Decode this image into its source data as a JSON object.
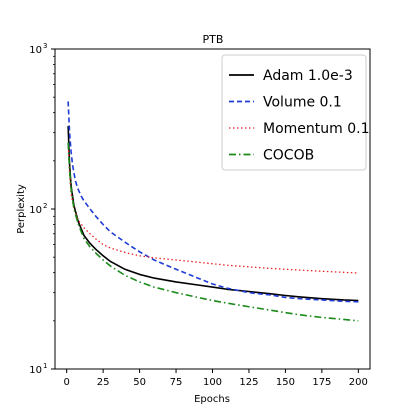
{
  "chart_data": {
    "type": "line",
    "title": "PTB",
    "xlabel": "Epochs",
    "ylabel": "Perplexity",
    "xlim": [
      -8,
      208
    ],
    "ylim": [
      10,
      1000
    ],
    "yscale": "log",
    "x_ticks": [
      0,
      25,
      50,
      75,
      100,
      125,
      150,
      175,
      200
    ],
    "x_tick_labels": [
      "0",
      "25",
      "50",
      "75",
      "100",
      "125",
      "150",
      "175",
      "200"
    ],
    "y_ticks": [
      10,
      100,
      1000
    ],
    "y_tick_labels": [
      {
        "base": "10",
        "exp": "1"
      },
      {
        "base": "10",
        "exp": "2"
      },
      {
        "base": "10",
        "exp": "3"
      }
    ],
    "grid": false,
    "legend_position": "top-right",
    "series": [
      {
        "name": "Adam 1.0e-3",
        "color": "#000000",
        "style": "solid",
        "x": [
          1,
          2,
          3,
          5,
          8,
          12,
          16,
          20,
          25,
          30,
          40,
          50,
          60,
          75,
          90,
          100,
          110,
          125,
          140,
          150,
          160,
          175,
          190,
          200
        ],
        "y": [
          330,
          190,
          140,
          105,
          83,
          68,
          61,
          56,
          51,
          47,
          42,
          39,
          37,
          35,
          33.5,
          32.5,
          31.5,
          30.5,
          29.5,
          28.8,
          28.2,
          27.5,
          27,
          26.8
        ]
      },
      {
        "name": "Volume 0.1",
        "color": "#1f3cd6",
        "style": "dashed",
        "x": [
          1,
          2,
          3,
          4,
          5,
          6,
          7,
          8,
          10,
          12,
          14,
          16,
          18,
          20,
          25,
          30,
          40,
          50,
          60,
          75,
          90,
          100,
          110,
          125,
          140,
          150,
          160,
          175,
          190,
          200
        ],
        "y": [
          470,
          300,
          230,
          190,
          168,
          150,
          140,
          132,
          120,
          112,
          106,
          100,
          95,
          90,
          80,
          72,
          62,
          54,
          48,
          42,
          37,
          34,
          32,
          30,
          29,
          28,
          27.5,
          27,
          26.5,
          26.3
        ]
      },
      {
        "name": "Momentum 0.1",
        "color": "#ee2222",
        "style": "dotted",
        "x": [
          1,
          2,
          3,
          5,
          8,
          12,
          16,
          20,
          25,
          30,
          40,
          50,
          60,
          75,
          90,
          100,
          110,
          125,
          140,
          150,
          160,
          175,
          190,
          200
        ],
        "y": [
          260,
          165,
          125,
          100,
          85,
          76,
          70,
          65,
          60,
          57,
          53.5,
          51,
          49.5,
          48,
          46.5,
          45.5,
          44.5,
          43.5,
          42.5,
          42,
          41.5,
          40.8,
          40.2,
          39.8
        ]
      },
      {
        "name": "COCOB",
        "color": "#1a8a1a",
        "style": "dashdot",
        "x": [
          1,
          2,
          3,
          5,
          8,
          12,
          16,
          20,
          25,
          30,
          40,
          50,
          60,
          75,
          90,
          100,
          110,
          125,
          140,
          150,
          160,
          175,
          190,
          200
        ],
        "y": [
          260,
          175,
          135,
          100,
          80,
          65,
          58,
          53,
          48,
          44,
          38.5,
          35,
          32.5,
          30,
          28,
          26.8,
          25.8,
          24.5,
          23.3,
          22.5,
          21.8,
          21,
          20.4,
          20
        ]
      }
    ]
  }
}
